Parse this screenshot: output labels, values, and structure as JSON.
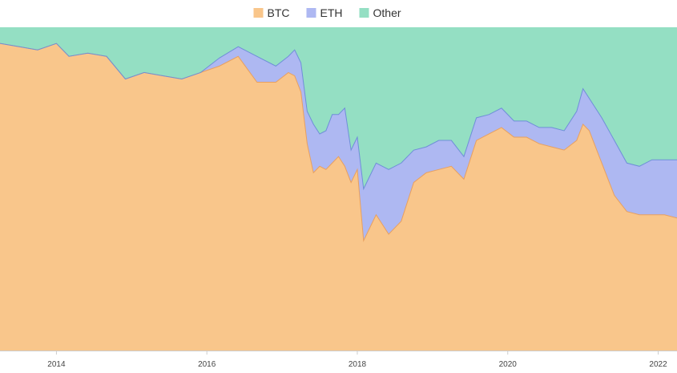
{
  "chart_data": {
    "type": "area",
    "stacked": true,
    "normalized_percent": true,
    "legend_position": "top-center",
    "grid": false,
    "title": "",
    "xlabel": "",
    "ylabel": "",
    "ylim": [
      0,
      100
    ],
    "xlim": [
      "2013-04",
      "2022-04"
    ],
    "x_ticks": [
      "2014",
      "2016",
      "2018",
      "2020",
      "2022"
    ],
    "x": [
      "2013-04",
      "2013-07",
      "2013-10",
      "2014-01",
      "2014-03",
      "2014-06",
      "2014-09",
      "2014-12",
      "2015-03",
      "2015-06",
      "2015-09",
      "2015-12",
      "2016-03",
      "2016-06",
      "2016-09",
      "2016-12",
      "2017-02",
      "2017-03",
      "2017-04",
      "2017-05",
      "2017-06",
      "2017-07",
      "2017-08",
      "2017-09",
      "2017-10",
      "2017-11",
      "2017-12",
      "2018-01",
      "2018-02",
      "2018-04",
      "2018-06",
      "2018-08",
      "2018-10",
      "2018-12",
      "2019-02",
      "2019-04",
      "2019-06",
      "2019-08",
      "2019-10",
      "2019-12",
      "2020-02",
      "2020-04",
      "2020-06",
      "2020-08",
      "2020-10",
      "2020-12",
      "2021-01",
      "2021-02",
      "2021-04",
      "2021-06",
      "2021-08",
      "2021-10",
      "2021-12",
      "2022-02",
      "2022-04"
    ],
    "series": [
      {
        "name": "BTC",
        "color": "#f9c68b",
        "line_color": "#e8a060",
        "values": [
          95,
          94,
          93,
          95,
          91,
          92,
          91,
          84,
          86,
          85,
          84,
          86,
          88,
          91,
          83,
          83,
          86,
          85,
          80,
          64,
          55,
          57,
          56,
          58,
          60,
          57,
          52,
          56,
          34,
          42,
          36,
          40,
          52,
          55,
          56,
          57,
          53,
          65,
          67,
          69,
          66,
          66,
          64,
          63,
          62,
          65,
          70,
          68,
          58,
          48,
          43,
          42,
          42,
          42,
          41
        ]
      },
      {
        "name": "ETH",
        "color": "#aeb8f2",
        "values": [
          0,
          0,
          0,
          0,
          0,
          0,
          0,
          0,
          0,
          0,
          0,
          0,
          2.5,
          3,
          8,
          5,
          5,
          8,
          9,
          10,
          15,
          10,
          12,
          15,
          13,
          18,
          10,
          10,
          16,
          16,
          20,
          18,
          10,
          8,
          9,
          8,
          7,
          7,
          6,
          6,
          5,
          5,
          5,
          6,
          6,
          9,
          11,
          10,
          14,
          17,
          15,
          15,
          17,
          17,
          18
        ]
      },
      {
        "name": "Other",
        "color": "#94dfc3",
        "values": [
          5,
          6,
          7,
          5,
          9,
          8,
          9,
          16,
          14,
          15,
          16,
          14,
          9.5,
          6,
          9,
          12,
          9,
          7,
          11,
          26,
          30,
          33,
          32,
          27,
          27,
          25,
          38,
          34,
          50,
          42,
          44,
          42,
          38,
          37,
          35,
          35,
          40,
          28,
          27,
          25,
          29,
          29,
          31,
          31,
          32,
          26,
          19,
          22,
          28,
          35,
          42,
          43,
          41,
          41,
          41
        ]
      }
    ]
  }
}
